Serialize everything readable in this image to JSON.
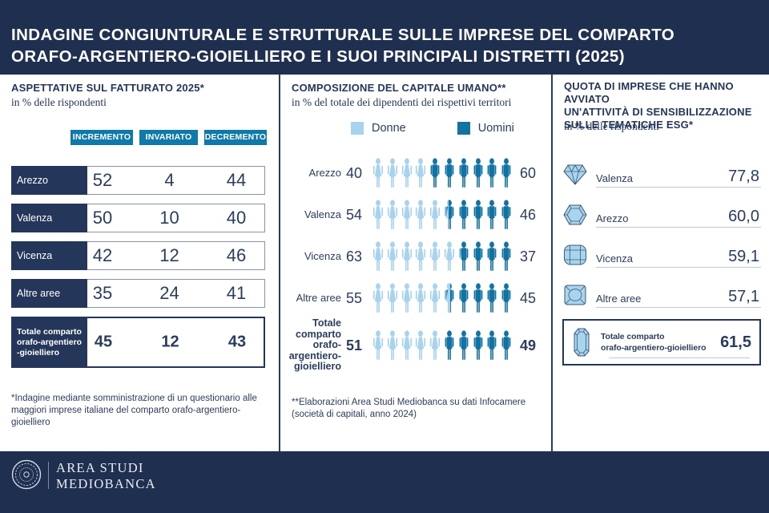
{
  "colors": {
    "navy": "#1F2F4F",
    "cell_navy": "#24365A",
    "teal_badge": "#0F7AA9",
    "light_blue": "#A8D3EE",
    "dark_blue": "#1173A3",
    "text_navy": "#2B3D5F",
    "gem_fill": "#A9D4EE",
    "gem_stroke": "#3D5A78"
  },
  "header": {
    "title_lines": [
      "INDAGINE CONGIUNTURALE E STRUTTURALE SULLE IMPRESE DEL COMPARTO",
      "ORAFO-ARGENTIERO-GIOIELLIERO E I SUOI PRINCIPALI DISTRETTI (2025)"
    ]
  },
  "left_panel": {
    "title": "ASPETTATIVE SUL FATTURATO 2025*",
    "subtitle": "in % delle rispondenti",
    "columns": [
      "INCREMENTO",
      "INVARIATO",
      "DECREMENTO"
    ],
    "rows": [
      {
        "label": "Arezzo",
        "label_lines": [
          "Arezzo"
        ],
        "values": [
          "52",
          "4",
          "44"
        ],
        "total": false
      },
      {
        "label": "Valenza",
        "label_lines": [
          "Valenza"
        ],
        "values": [
          "50",
          "10",
          "40"
        ],
        "total": false
      },
      {
        "label": "Vicenza",
        "label_lines": [
          "Vicenza"
        ],
        "values": [
          "42",
          "12",
          "46"
        ],
        "total": false
      },
      {
        "label": "Altre aree",
        "label_lines": [
          "Altre aree"
        ],
        "values": [
          "35",
          "24",
          "41"
        ],
        "total": false
      },
      {
        "label": "Totale comparto orafo-argentiero-gioielliero",
        "label_lines": [
          "Totale comparto",
          "orafo-argentiero",
          "-gioielliero"
        ],
        "values": [
          "45",
          "12",
          "43"
        ],
        "total": true
      }
    ],
    "footnote": "*Indagine mediante somministrazione di un questionario alle maggiori imprese italiane del comparto orafo-argentiero-gioielliero"
  },
  "middle_panel": {
    "title": "COMPOSIZIONE DEL CAPITALE UMANO**",
    "subtitle": "in % del totale dei dipendenti dei rispettivi territori",
    "legend": [
      {
        "label": "Donne",
        "color": "#A8D3EE"
      },
      {
        "label": "Uomini",
        "color": "#1173A3"
      }
    ],
    "rows": [
      {
        "label": "Arezzo",
        "label_lines": [
          "Arezzo"
        ],
        "donne": 40,
        "uomini": 60,
        "total": false
      },
      {
        "label": "Valenza",
        "label_lines": [
          "Valenza"
        ],
        "donne": 54,
        "uomini": 46,
        "total": false
      },
      {
        "label": "Vicenza",
        "label_lines": [
          "Vicenza"
        ],
        "donne": 63,
        "uomini": 37,
        "total": false
      },
      {
        "label": "Altre aree",
        "label_lines": [
          "Altre aree"
        ],
        "donne": 55,
        "uomini": 45,
        "total": false
      },
      {
        "label": "Totale comparto orafo-argentiero-gioielliero",
        "label_lines": [
          "Totale",
          "comparto",
          "orafo-",
          "argentiero-",
          "gioielliero"
        ],
        "donne": 51,
        "uomini": 49,
        "total": true
      }
    ],
    "footnote": "**Elaborazioni Area Studi Mediobanca su dati Infocamere (società di capitali, anno 2024)"
  },
  "right_panel": {
    "title_lines": [
      "QUOTA DI IMPRESE CHE HANNO AVVIATO",
      "UN'ATTIVITÀ DI SENSIBILIZZAZIONE",
      "SULLE TEMATICHE ESG*"
    ],
    "subtitle": "in % delle rispondenti",
    "rows": [
      {
        "label": "Valenza",
        "value": "77,8",
        "gem": "brilliant"
      },
      {
        "label": "Arezzo",
        "value": "60,0",
        "gem": "hexagon"
      },
      {
        "label": "Vicenza",
        "value": "59,1",
        "gem": "barrel"
      },
      {
        "label": "Altre aree",
        "value": "57,1",
        "gem": "cushion"
      }
    ],
    "total_row": {
      "label_lines": [
        "Totale comparto",
        "orafo-argentiero-gioielliero"
      ],
      "value": "61,5",
      "gem": "emerald"
    }
  },
  "footer": {
    "logo_lines": [
      "AREA STUDI",
      "MEDIOBANCA"
    ]
  },
  "chart_data": [
    {
      "type": "table",
      "title": "ASPETTATIVE SUL FATTURATO 2025*",
      "subtitle": "in % delle rispondenti",
      "columns": [
        "INCREMENTO",
        "INVARIATO",
        "DECREMENTO"
      ],
      "rows": [
        {
          "label": "Arezzo",
          "values": [
            52,
            4,
            44
          ]
        },
        {
          "label": "Valenza",
          "values": [
            50,
            10,
            40
          ]
        },
        {
          "label": "Vicenza",
          "values": [
            42,
            12,
            46
          ]
        },
        {
          "label": "Altre aree",
          "values": [
            35,
            24,
            41
          ]
        },
        {
          "label": "Totale comparto orafo-argentiero-gioielliero",
          "values": [
            45,
            12,
            43
          ]
        }
      ],
      "footnote": "*Indagine mediante somministrazione di un questionario alle maggiori imprese italiane del comparto orafo-argentiero-gioielliero"
    },
    {
      "type": "bar",
      "subtype": "pictogram-100pct-stacked",
      "title": "COMPOSIZIONE DEL CAPITALE UMANO**",
      "subtitle": "in % del totale dei dipendenti dei rispettivi territori",
      "categories": [
        "Arezzo",
        "Valenza",
        "Vicenza",
        "Altre aree",
        "Totale comparto orafo-argentiero-gioielliero"
      ],
      "series": [
        {
          "name": "Donne",
          "values": [
            40,
            54,
            63,
            55,
            51
          ]
        },
        {
          "name": "Uomini",
          "values": [
            60,
            46,
            37,
            45,
            49
          ]
        }
      ],
      "legend_position": "top",
      "footnote": "**Elaborazioni Area Studi Mediobanca su dati Infocamere (società di capitali, anno 2024)"
    },
    {
      "type": "bar",
      "subtype": "icon-value-list",
      "title": "QUOTA DI IMPRESE CHE HANNO AVVIATO UN'ATTIVITÀ DI SENSIBILIZZAZIONE SULLE TEMATICHE ESG*",
      "subtitle": "in % delle rispondenti",
      "categories": [
        "Valenza",
        "Arezzo",
        "Vicenza",
        "Altre aree",
        "Totale comparto orafo-argentiero-gioielliero"
      ],
      "values": [
        77.8,
        60.0,
        59.1,
        57.1,
        61.5
      ]
    }
  ]
}
